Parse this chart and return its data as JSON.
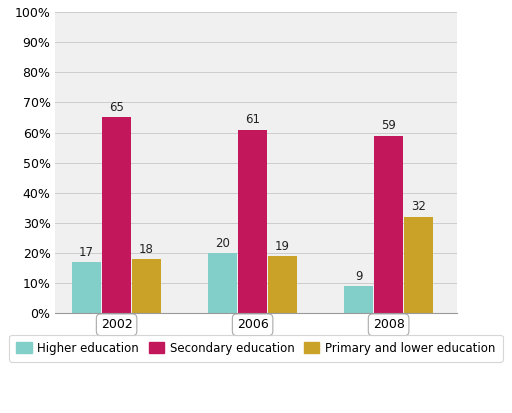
{
  "years": [
    "2002",
    "2006",
    "2008"
  ],
  "categories": [
    "Higher education",
    "Secondary education",
    "Primary and lower education"
  ],
  "values": {
    "Higher education": [
      17,
      20,
      9
    ],
    "Secondary education": [
      65,
      61,
      59
    ],
    "Primary and lower education": [
      18,
      19,
      32
    ]
  },
  "colors": {
    "Higher education": "#82cfc9",
    "Secondary education": "#c2185b",
    "Primary and lower education": "#c9a227"
  },
  "ylim": [
    0,
    100
  ],
  "yticks": [
    0,
    10,
    20,
    30,
    40,
    50,
    60,
    70,
    80,
    90,
    100
  ],
  "ytick_labels": [
    "0%",
    "10%",
    "20%",
    "30%",
    "40%",
    "50%",
    "60%",
    "70%",
    "80%",
    "90%",
    "100%"
  ],
  "background_color": "#ffffff",
  "plot_bg_color": "#f0f0f0",
  "grid_color": "#cccccc",
  "bar_label_fontsize": 8.5,
  "legend_fontsize": 8.5,
  "tick_fontsize": 9,
  "bar_width": 0.22,
  "group_positions": [
    0.35,
    1.35,
    2.35
  ]
}
